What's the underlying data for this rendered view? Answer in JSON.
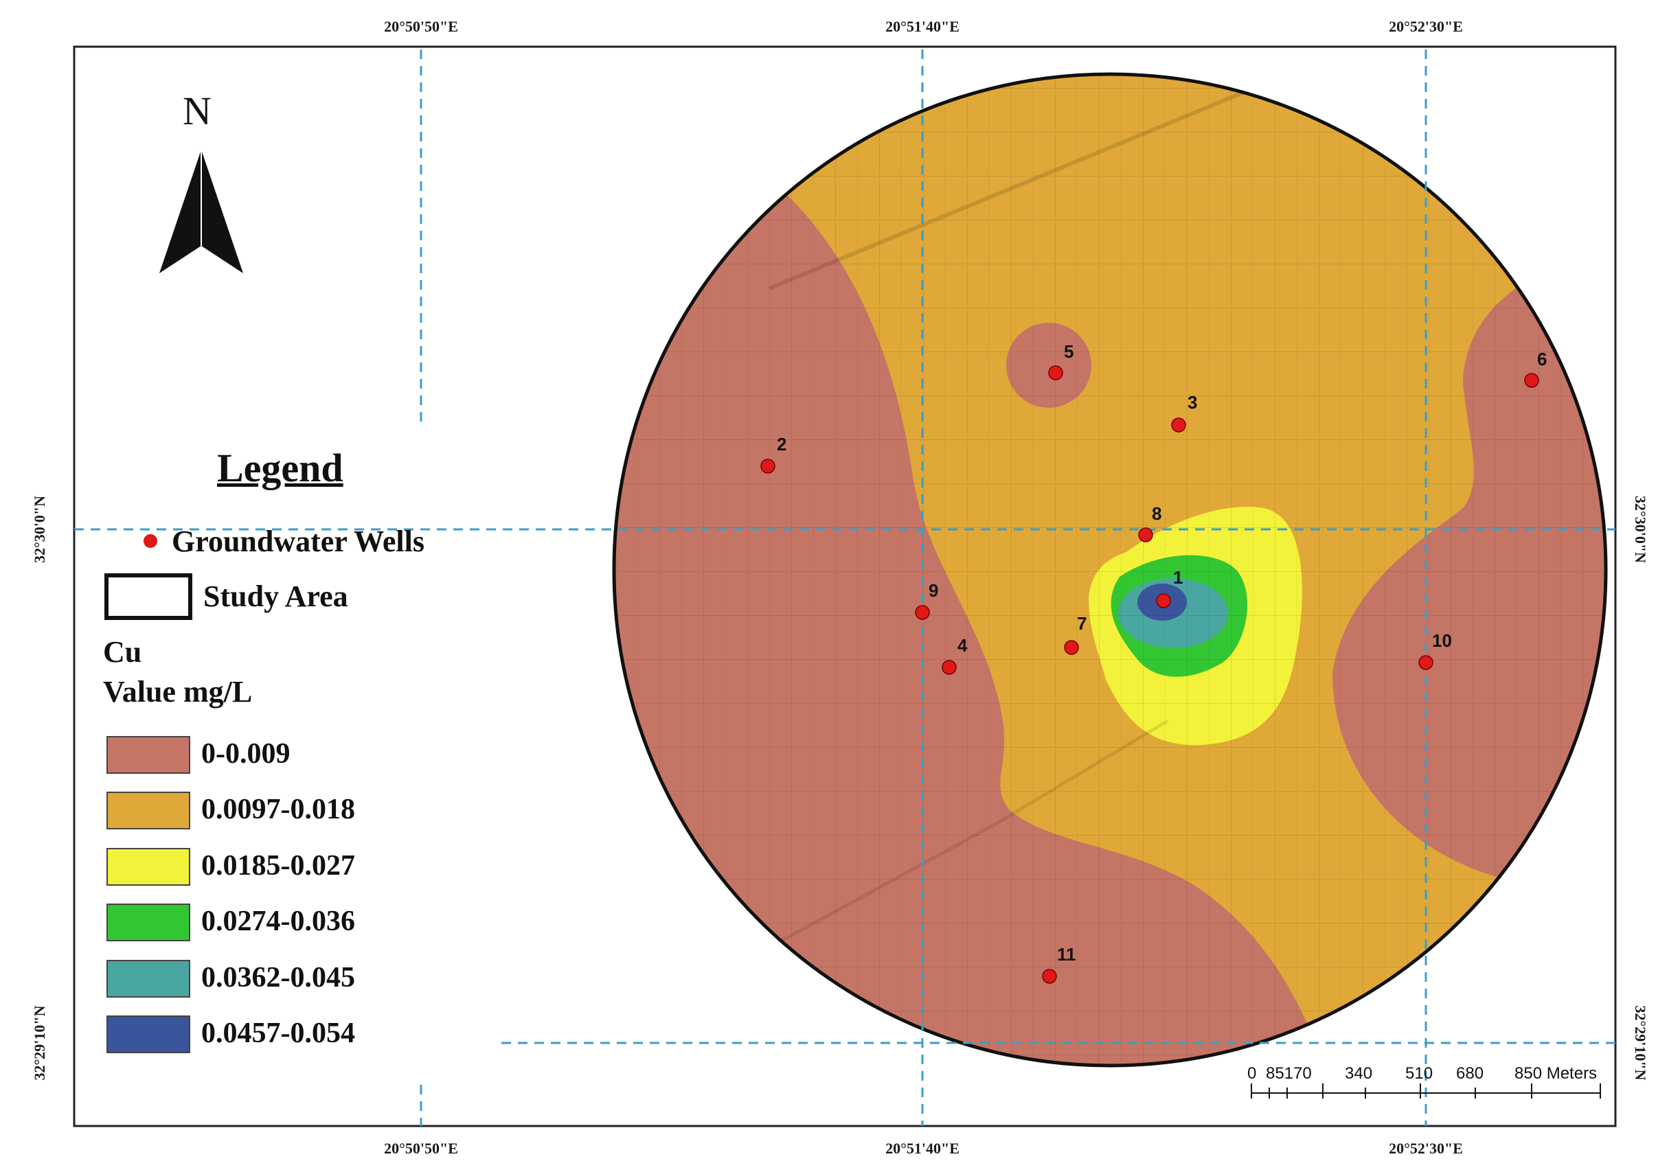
{
  "coordinates": {
    "top": [
      "20°50'50\"E",
      "20°51'40\"E",
      "20°52'30\"E"
    ],
    "bottom": [
      "20°50'50\"E",
      "20°51'40\"E",
      "20°52'30\"E"
    ],
    "left": [
      "32°30'0\"N",
      "32°29'10\"N"
    ],
    "right": [
      "32°30'0\"N",
      "32°29'10\"N"
    ]
  },
  "north_arrow": {
    "label": "N"
  },
  "legend": {
    "title": "Legend",
    "wells_label": "Groundwater Wells",
    "study_area_label": "Study Area",
    "variable": "Cu",
    "unit_label": "Value mg/L",
    "classes": [
      {
        "label": "0-0.009",
        "color": "#c57565"
      },
      {
        "label": "0.0097-0.018",
        "color": "#e0a838"
      },
      {
        "label": "0.0185-0.027",
        "color": "#f2f23a"
      },
      {
        "label": "0.0274-0.036",
        "color": "#33c633"
      },
      {
        "label": "0.0362-0.045",
        "color": "#4aa6a0"
      },
      {
        "label": "0.0457-0.054",
        "color": "#3a559c"
      }
    ]
  },
  "wells": [
    {
      "id": "1"
    },
    {
      "id": "2"
    },
    {
      "id": "3"
    },
    {
      "id": "4"
    },
    {
      "id": "5"
    },
    {
      "id": "6"
    },
    {
      "id": "7"
    },
    {
      "id": "8"
    },
    {
      "id": "9"
    },
    {
      "id": "10"
    },
    {
      "id": "11"
    }
  ],
  "well_color": "#e01818",
  "scale_bar": {
    "ticks": [
      "0",
      "85170",
      "340",
      "510",
      "680",
      "850 Meters"
    ]
  }
}
